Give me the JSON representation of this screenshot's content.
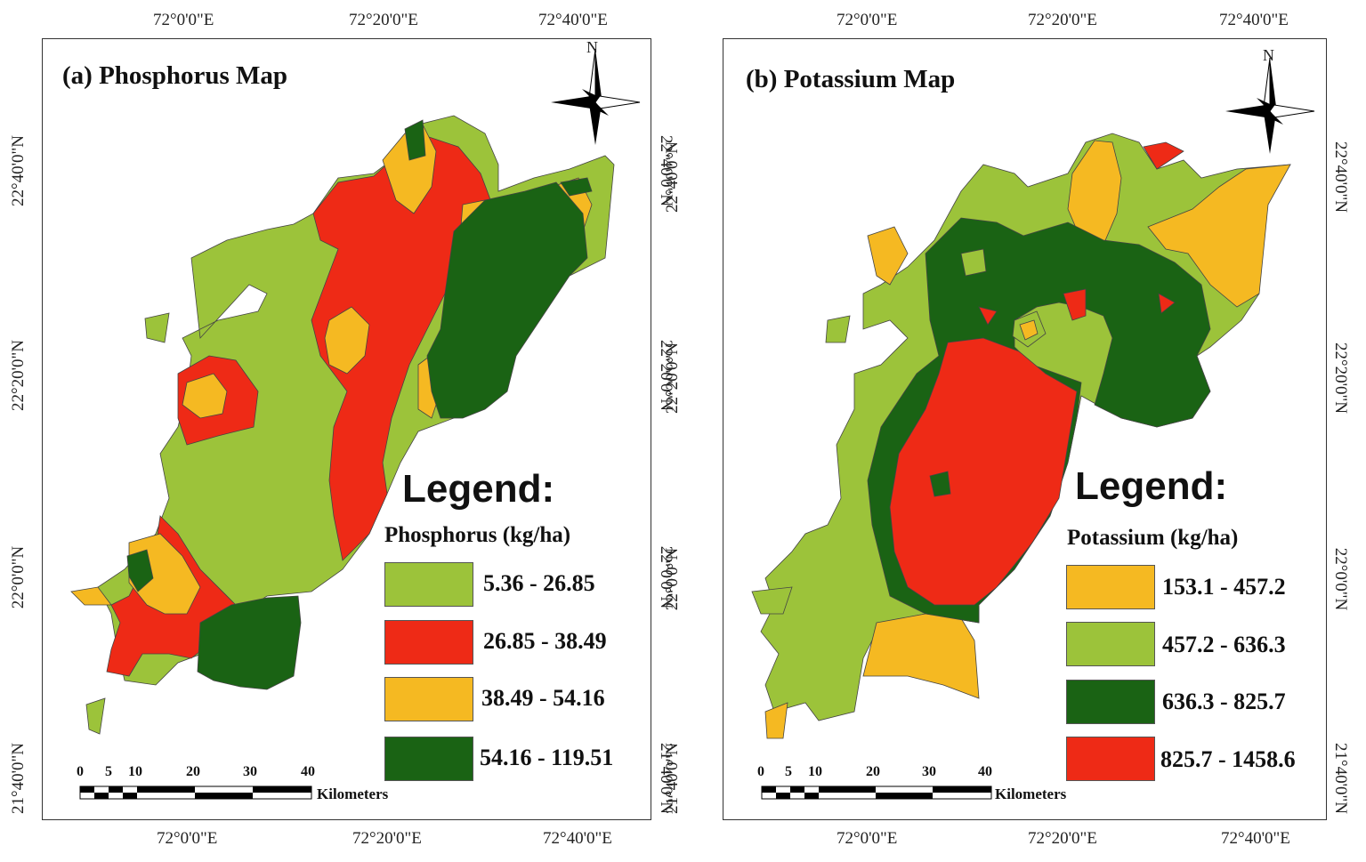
{
  "maps": [
    {
      "title": "(a) Phosphorus Map",
      "legend_heading": "Legend:",
      "legend_subtitle": "Phosphorus (kg/ha)",
      "legend": [
        {
          "label": "5.36 - 26.85",
          "color": "#9cc33a"
        },
        {
          "label": "26.85 - 38.49",
          "color": "#ee2a16"
        },
        {
          "label": "38.49 - 54.16",
          "color": "#f5b922"
        },
        {
          "label": "54.16 - 119.51",
          "color": "#1a6314"
        }
      ],
      "north": "N",
      "scalebar": {
        "ticks": [
          "0",
          "5",
          "10",
          "20",
          "30",
          "40"
        ],
        "unit": "Kilometers"
      },
      "x_ticks": [
        "72°0'0\"E",
        "72°20'0\"E",
        "72°40'0\"E"
      ],
      "y_ticks": [
        "22°40'0\"N",
        "22°20'0\"N",
        "22°0'0\"N",
        "21°40'0\"N"
      ]
    },
    {
      "title": "(b) Potassium Map",
      "legend_heading": "Legend:",
      "legend_subtitle": "Potassium (kg/ha)",
      "legend": [
        {
          "label": "153.1 - 457.2",
          "color": "#f5b922"
        },
        {
          "label": "457.2 - 636.3",
          "color": "#9cc33a"
        },
        {
          "label": "636.3 - 825.7",
          "color": "#1a6314"
        },
        {
          "label": "825.7 - 1458.6",
          "color": "#ee2a16"
        }
      ],
      "north": "N",
      "scalebar": {
        "ticks": [
          "0",
          "5",
          "10",
          "20",
          "30",
          "40"
        ],
        "unit": "Kilometers"
      },
      "x_ticks": [
        "72°0'0\"E",
        "72°20'0\"E",
        "72°40'0\"E"
      ],
      "y_ticks": [
        "22°40'0\"N",
        "22°20'0\"N",
        "22°0'0\"N",
        "21°40'0\"N"
      ]
    }
  ]
}
